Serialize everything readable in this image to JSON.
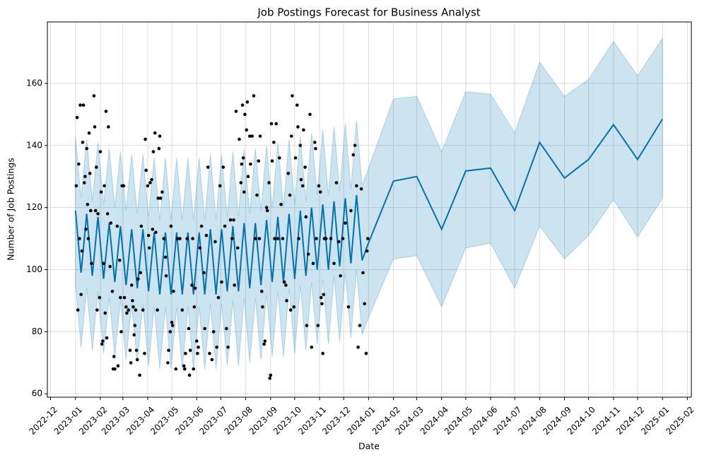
{
  "chart_data": {
    "type": "forecast",
    "title": "Job Postings Forecast for Business Analyst",
    "x_label": "Date",
    "y_label": "Number of Job Postings",
    "grid": true,
    "xlim": [
      -35,
      767
    ],
    "ylim": [
      58.9,
      179.8
    ],
    "xticks": [
      {
        "value": -31,
        "label": "2022-12"
      },
      {
        "value": 0,
        "label": "2023-01"
      },
      {
        "value": 31,
        "label": "2023-02"
      },
      {
        "value": 59,
        "label": "2023-03"
      },
      {
        "value": 90,
        "label": "2023-04"
      },
      {
        "value": 120,
        "label": "2023-05"
      },
      {
        "value": 151,
        "label": "2023-06"
      },
      {
        "value": 181,
        "label": "2023-07"
      },
      {
        "value": 212,
        "label": "2023-08"
      },
      {
        "value": 243,
        "label": "2023-09"
      },
      {
        "value": 273,
        "label": "2023-10"
      },
      {
        "value": 304,
        "label": "2023-11"
      },
      {
        "value": 334,
        "label": "2023-12"
      },
      {
        "value": 365,
        "label": "2024-01"
      },
      {
        "value": 396,
        "label": "2024-02"
      },
      {
        "value": 425,
        "label": "2024-03"
      },
      {
        "value": 456,
        "label": "2024-04"
      },
      {
        "value": 486,
        "label": "2024-05"
      },
      {
        "value": 517,
        "label": "2024-06"
      },
      {
        "value": 547,
        "label": "2024-07"
      },
      {
        "value": 578,
        "label": "2024-08"
      },
      {
        "value": 609,
        "label": "2024-09"
      },
      {
        "value": 639,
        "label": "2024-10"
      },
      {
        "value": 670,
        "label": "2024-11"
      },
      {
        "value": 700,
        "label": "2024-12"
      },
      {
        "value": 731,
        "label": "2025-01"
      },
      {
        "value": 762,
        "label": "2025-02"
      }
    ],
    "yticks": [
      60,
      80,
      100,
      120,
      140,
      160
    ],
    "forecast": {
      "color": "#0072B2",
      "x": [
        0,
        7,
        14,
        21,
        28,
        35,
        42,
        49,
        56,
        63,
        70,
        77,
        84,
        91,
        98,
        105,
        112,
        119,
        126,
        133,
        140,
        147,
        154,
        161,
        168,
        175,
        182,
        189,
        196,
        203,
        210,
        217,
        224,
        231,
        238,
        245,
        252,
        259,
        266,
        273,
        280,
        287,
        294,
        301,
        308,
        315,
        322,
        329,
        336,
        343,
        350,
        357,
        364,
        396,
        425,
        456,
        486,
        517,
        547,
        578,
        609,
        639,
        670,
        700,
        731
      ],
      "values": [
        119,
        99,
        118,
        98,
        117,
        97,
        115,
        96,
        114,
        95,
        113,
        94,
        113,
        93,
        112,
        92,
        112,
        92,
        112,
        92,
        112,
        92,
        112,
        92,
        113,
        92,
        113,
        93,
        114,
        93,
        115,
        94,
        115,
        95,
        116,
        96,
        117,
        96,
        118,
        97,
        119,
        98,
        120,
        100,
        121,
        100,
        122,
        101,
        123,
        102,
        124,
        103,
        108,
        128.5,
        130,
        113,
        131.8,
        132.7,
        119,
        141,
        129.5,
        135.5,
        146.7,
        135.5,
        148.5
      ],
      "lower": [
        95,
        75,
        94,
        74,
        93,
        73,
        91,
        72,
        90,
        71,
        89,
        70,
        89,
        69,
        88,
        68,
        88,
        68,
        88,
        68,
        88,
        68,
        88,
        68,
        89,
        68,
        89,
        69,
        90,
        69,
        91,
        70,
        91,
        71,
        92,
        72,
        93,
        72,
        94,
        73,
        95,
        74,
        96,
        76,
        97,
        76,
        98,
        77,
        99,
        78,
        100,
        79,
        84,
        103.5,
        104.5,
        88,
        107,
        108.5,
        94,
        114,
        103.5,
        111,
        122.5,
        110.5,
        123
      ],
      "upper": [
        143,
        123,
        142,
        122,
        141,
        121,
        139,
        120,
        138,
        119,
        137,
        118,
        137,
        117,
        136,
        116,
        136,
        116,
        136,
        116,
        136,
        116,
        136,
        116,
        137,
        116,
        137,
        117,
        138,
        117,
        139,
        118,
        139,
        119,
        140,
        120,
        141,
        120,
        142,
        121,
        143,
        122,
        144,
        124,
        145,
        124,
        146,
        125,
        147,
        126,
        148,
        127,
        132,
        155,
        155.8,
        138,
        157.3,
        156.5,
        144,
        166.8,
        155.8,
        161.3,
        173.5,
        162.5,
        174.5
      ]
    },
    "points": {
      "color": "#000000",
      "x": [
        1,
        2,
        3,
        4,
        5,
        6,
        7,
        8,
        9,
        10,
        11,
        12,
        13,
        14,
        15,
        16,
        17,
        18,
        19,
        20,
        23,
        24,
        25,
        26,
        27,
        28,
        30,
        31,
        32,
        33,
        34,
        35,
        36,
        37,
        38,
        39,
        40,
        41,
        43,
        44,
        46,
        47,
        48,
        49,
        52,
        53,
        55,
        56,
        57,
        58,
        60,
        61,
        63,
        64,
        66,
        68,
        69,
        70,
        71,
        72,
        73,
        74,
        75,
        76,
        77,
        78,
        80,
        81,
        82,
        84,
        86,
        87,
        88,
        90,
        91,
        92,
        93,
        95,
        96,
        97,
        99,
        100,
        102,
        103,
        104,
        105,
        106,
        108,
        110,
        112,
        113,
        115,
        116,
        118,
        119,
        120,
        121,
        122,
        125,
        127,
        130,
        133,
        135,
        136,
        137,
        139,
        141,
        142,
        143,
        145,
        146,
        147,
        148,
        149,
        151,
        152,
        153,
        155,
        157,
        160,
        161,
        163,
        165,
        167,
        170,
        172,
        174,
        176,
        178,
        180,
        182,
        184,
        186,
        188,
        190,
        193,
        195,
        197,
        198,
        200,
        202,
        204,
        206,
        207,
        208,
        209,
        210,
        211,
        213,
        214,
        215,
        217,
        218,
        220,
        222,
        224,
        226,
        228,
        229,
        230,
        232,
        233,
        235,
        236,
        238,
        239,
        241,
        242,
        243,
        244,
        245,
        247,
        248,
        250,
        252,
        254,
        256,
        258,
        260,
        262,
        263,
        265,
        267,
        268,
        269,
        270,
        272,
        274,
        276,
        277,
        278,
        280,
        281,
        283,
        284,
        286,
        287,
        288,
        290,
        292,
        294,
        296,
        298,
        299,
        300,
        302,
        303,
        305,
        306,
        307,
        308,
        309,
        310,
        312,
        318,
        322,
        325,
        328,
        330,
        333,
        336,
        340,
        343,
        346,
        348,
        350,
        352,
        354,
        356,
        358,
        360,
        362,
        363,
        364
      ],
      "y": [
        127,
        149,
        87,
        134,
        110,
        153,
        92,
        106,
        141,
        153,
        128,
        130,
        113,
        139,
        121,
        110,
        144,
        131,
        119,
        102,
        156,
        146,
        119,
        133,
        87,
        118,
        91,
        138,
        125,
        76,
        77,
        102,
        127,
        86,
        151,
        78,
        118,
        146,
        101,
        115,
        93,
        68,
        72,
        68,
        114,
        69,
        103,
        91,
        80,
        127,
        127,
        91,
        88,
        86,
        87,
        74,
        70,
        95,
        90,
        88,
        79,
        82,
        87,
        74,
        71,
        97,
        66,
        99,
        114,
        87,
        73,
        142,
        132,
        127,
        111,
        107,
        128,
        129,
        113,
        138,
        144,
        112,
        87,
        123,
        139,
        143,
        123,
        125,
        110,
        104,
        98,
        70,
        74,
        80,
        114,
        83,
        82,
        93,
        68,
        110,
        110,
        87,
        69,
        68,
        73,
        110,
        81,
        66,
        74,
        95,
        110,
        68,
        88,
        94,
        77,
        73,
        75,
        107,
        114,
        99,
        81,
        111,
        133,
        73,
        71,
        80,
        109,
        75,
        91,
        127,
        96,
        133,
        114,
        81,
        75,
        116,
        110,
        116,
        95,
        151,
        107,
        142,
        128,
        134,
        153,
        136,
        125,
        150,
        145,
        154,
        130,
        143,
        134,
        143,
        156,
        110,
        124,
        135,
        110,
        143,
        93,
        88,
        76,
        77,
        120,
        119,
        128,
        65,
        66,
        147,
        135,
        141,
        110,
        147,
        110,
        136,
        121,
        110,
        96,
        95,
        90,
        131,
        124,
        87,
        143,
        156,
        88,
        136,
        153,
        146,
        110,
        140,
        129,
        127,
        145,
        133,
        117,
        82,
        105,
        150,
        75,
        102,
        141,
        139,
        110,
        82,
        127,
        125,
        91,
        89,
        73,
        92,
        110,
        110,
        110,
        102,
        128,
        109,
        98,
        110,
        115,
        88,
        119,
        137,
        140,
        127,
        75,
        82,
        126,
        99,
        89,
        73,
        106,
        110
      ]
    }
  }
}
